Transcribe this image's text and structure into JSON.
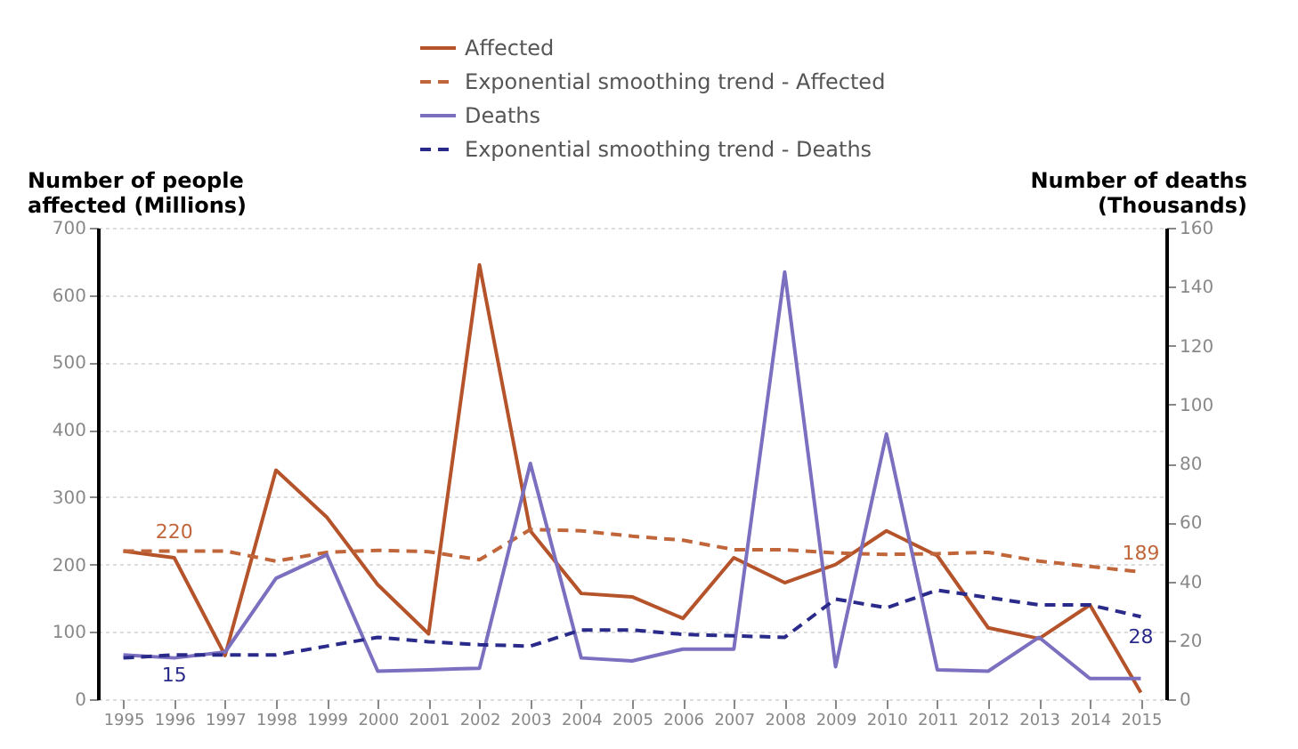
{
  "chart_data": {
    "type": "line",
    "categories": [
      "1995",
      "1996",
      "1997",
      "1998",
      "1999",
      "2000",
      "2001",
      "2002",
      "2003",
      "2004",
      "2005",
      "2006",
      "2007",
      "2008",
      "2009",
      "2010",
      "2011",
      "2012",
      "2013",
      "2014",
      "2015"
    ],
    "ylabel": "Number of people affected (Millions)",
    "y2label": "Number of deaths (Thousands)",
    "ylim": [
      0,
      700
    ],
    "yticks": [
      0,
      100,
      200,
      300,
      400,
      500,
      600,
      700
    ],
    "y2lim": [
      0,
      160
    ],
    "y2ticks": [
      0,
      20,
      40,
      60,
      80,
      100,
      120,
      140,
      160
    ],
    "grid": "y",
    "legend": "top",
    "series": [
      {
        "name": "Affected",
        "color": "#b5532a",
        "line_style": "solid",
        "values": [
          220,
          210,
          65,
          340,
          270,
          170,
          97,
          645,
          250,
          157,
          152,
          120,
          210,
          173,
          200,
          250,
          213,
          106,
          90,
          140,
          10
        ]
      },
      {
        "name": "Exponential smoothing trend - Affected",
        "color": "#c0663a",
        "line_style": "dashed",
        "values": [
          220,
          220,
          220,
          205,
          218,
          221,
          219,
          207,
          252,
          250,
          242,
          236,
          222,
          222,
          217,
          215,
          216,
          218,
          205,
          197,
          189
        ],
        "value_labels": [
          null,
          "220",
          null,
          null,
          null,
          null,
          null,
          null,
          null,
          null,
          null,
          null,
          null,
          null,
          null,
          null,
          null,
          null,
          null,
          null,
          "189"
        ]
      },
      {
        "name": "Deaths",
        "color": "#7b6fc0",
        "line_style": "solid",
        "axis": "y2",
        "values": [
          15,
          14,
          16,
          41,
          49,
          9.5,
          10,
          10.5,
          80,
          14,
          13,
          17,
          17,
          145,
          11,
          90,
          10,
          9.5,
          21,
          7,
          7
        ]
      },
      {
        "name": "Exponential smoothing trend - Deaths",
        "color": "#2a2a8a",
        "line_style": "dashed",
        "axis": "y2",
        "values": [
          14,
          15,
          15,
          15,
          18,
          21,
          19.5,
          18.5,
          18,
          23.5,
          23.5,
          22,
          21.5,
          21,
          34,
          31,
          37,
          34.5,
          32,
          32,
          28
        ],
        "value_labels": [
          null,
          "15",
          null,
          null,
          null,
          null,
          null,
          null,
          null,
          null,
          null,
          null,
          null,
          null,
          null,
          null,
          null,
          null,
          null,
          null,
          "28"
        ]
      }
    ]
  }
}
